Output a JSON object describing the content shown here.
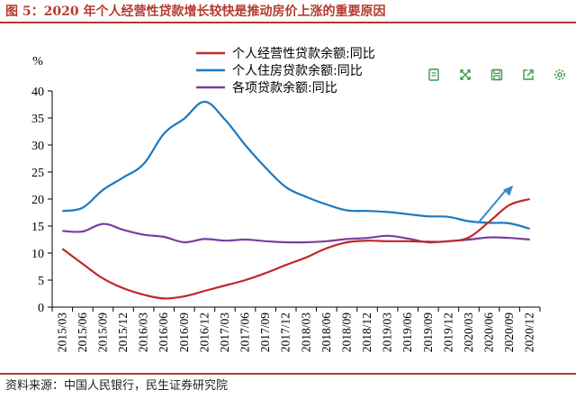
{
  "figure": {
    "title": "图 5：2020 年个人经营性贷款增长较快是推动房价上涨的重要原因",
    "source": "资料来源：中国人民银行，民生证券研究院"
  },
  "toolbox": {
    "items": [
      "data-view-icon",
      "restore-icon",
      "save-image-icon",
      "share-icon",
      "settings-icon"
    ],
    "color": "#3a9a4a"
  },
  "chart_data": {
    "type": "line",
    "ylabel": "%",
    "ylim": [
      0,
      40
    ],
    "yticks": [
      0,
      5,
      10,
      15,
      20,
      25,
      30,
      35,
      40
    ],
    "categories": [
      "2015/03",
      "2015/06",
      "2015/09",
      "2015/12",
      "2016/03",
      "2016/06",
      "2016/09",
      "2016/12",
      "2017/03",
      "2017/06",
      "2017/09",
      "2017/12",
      "2018/03",
      "2018/06",
      "2018/09",
      "2018/12",
      "2019/03",
      "2019/06",
      "2019/09",
      "2019/12",
      "2020/03",
      "2020/06",
      "2020/09",
      "2020/12"
    ],
    "grid": false,
    "legend_position": "top-center",
    "series": [
      {
        "name": "个人经营性贷款余额:同比",
        "color": "#c0282a",
        "values": [
          10.8,
          8.0,
          5.3,
          3.5,
          2.3,
          1.6,
          2.0,
          3.0,
          4.0,
          5.0,
          6.3,
          7.8,
          9.2,
          10.9,
          12.0,
          12.3,
          12.2,
          12.2,
          12.1,
          12.2,
          12.9,
          15.8,
          18.9,
          20.0
        ]
      },
      {
        "name": "个人住房贷款余额:同比",
        "color": "#1f79be",
        "values": [
          17.8,
          18.4,
          21.7,
          24.0,
          26.5,
          32.1,
          34.9,
          38.0,
          34.7,
          30.0,
          25.8,
          22.2,
          20.4,
          19.0,
          17.9,
          17.8,
          17.6,
          17.2,
          16.8,
          16.7,
          15.9,
          15.6,
          15.5,
          14.5
        ]
      },
      {
        "name": "各项贷款余额:同比",
        "color": "#7b3f9e",
        "values": [
          14.1,
          14.0,
          15.4,
          14.3,
          13.4,
          13.0,
          12.0,
          12.6,
          12.3,
          12.5,
          12.2,
          12.0,
          12.0,
          12.2,
          12.6,
          12.8,
          13.2,
          12.7,
          12.0,
          12.2,
          12.5,
          12.9,
          12.8,
          12.5
        ]
      }
    ],
    "annotation": {
      "type": "arrow",
      "from": [
        "2020/03",
        15.5
      ],
      "to": [
        "2020/09",
        22.5
      ],
      "color": "#3a86c8"
    }
  }
}
